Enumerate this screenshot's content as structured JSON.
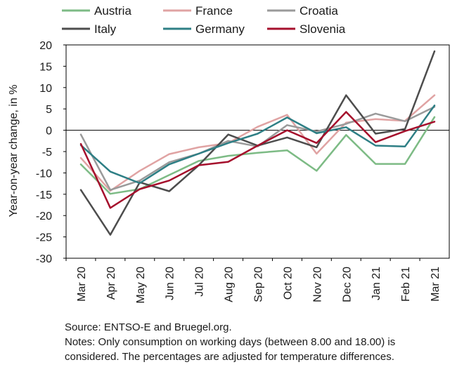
{
  "chart_data": {
    "type": "line",
    "ylabel": "Year-on-year change, in %",
    "ylim": [
      -30,
      20
    ],
    "yticks": [
      20,
      15,
      10,
      5,
      0,
      -5,
      -10,
      -15,
      -20,
      -25,
      -30
    ],
    "categories": [
      "Mar 20",
      "Apr 20",
      "May 20",
      "Jun 20",
      "Jul 20",
      "Aug 20",
      "Sep 20",
      "Oct 20",
      "Nov 20",
      "Dec 20",
      "Jan 21",
      "Feb 21",
      "Mar 21"
    ],
    "legend_position": "top",
    "grid": false,
    "series": [
      {
        "name": "Austria",
        "color": "#7dbb85",
        "values": [
          -8,
          -14.9,
          -13.8,
          -10.5,
          -7.2,
          -6,
          -5.3,
          -4.7,
          -9.5,
          -1.1,
          -7.9,
          -7.9,
          3.1
        ]
      },
      {
        "name": "France",
        "color": "#e0a3a3",
        "values": [
          -6.5,
          -14.2,
          -9.5,
          -5.6,
          -4,
          -3,
          0.8,
          3.6,
          -5.5,
          1.8,
          2.6,
          2.2,
          8.2
        ]
      },
      {
        "name": "Croatia",
        "color": "#9a9a9a",
        "values": [
          -1,
          -14,
          -11.8,
          -7.5,
          -5.5,
          -2.5,
          -3.8,
          1.2,
          -0.3,
          1.5,
          3.9,
          2.1,
          5.5
        ]
      },
      {
        "name": "Italy",
        "color": "#4d4d4d",
        "values": [
          -14,
          -24.5,
          -12.2,
          -14.3,
          -8.2,
          -1,
          -3.6,
          -1.7,
          -4,
          8.2,
          -0.8,
          0.3,
          18.5
        ]
      },
      {
        "name": "Germany",
        "color": "#2e7f85",
        "values": [
          -3.5,
          -9.7,
          -12.4,
          -8,
          -5.5,
          -3,
          -0.8,
          3,
          -0.7,
          0.7,
          -3.6,
          -3.8,
          5.8
        ]
      },
      {
        "name": "Slovenia",
        "color": "#a50f2c",
        "values": [
          -3.2,
          -18.2,
          -13.8,
          -11.8,
          -8.2,
          -7.4,
          -3.6,
          0,
          -3,
          4.3,
          -2.8,
          -0.2,
          2
        ]
      }
    ]
  },
  "notes": {
    "source": "Source: ENTSO-E and Bruegel.org.",
    "line1": "Notes: Only consumption on working days (between 8.00 and 18.00) is",
    "line2": "considered. The percentages are adjusted for temperature differences."
  }
}
